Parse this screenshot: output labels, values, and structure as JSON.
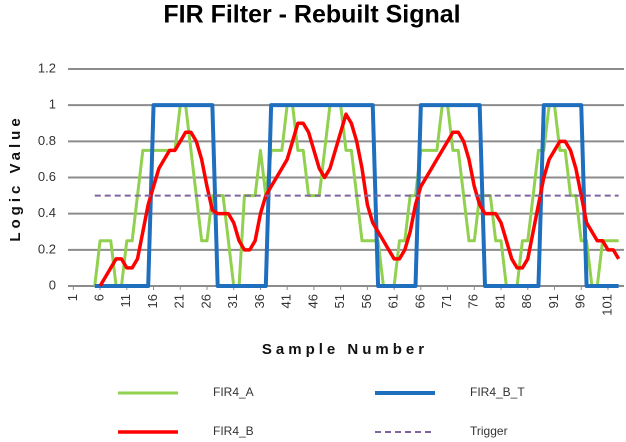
{
  "chart_data": {
    "type": "line",
    "title": "FIR Filter - Rebuilt Signal",
    "x_label": "Sample Number",
    "y_label": "Logic Value",
    "x": [
      5,
      6,
      7,
      8,
      9,
      10,
      11,
      12,
      13,
      14,
      15,
      16,
      17,
      18,
      19,
      20,
      21,
      22,
      23,
      24,
      25,
      26,
      27,
      28,
      29,
      30,
      31,
      32,
      33,
      34,
      35,
      36,
      37,
      38,
      39,
      40,
      41,
      42,
      43,
      44,
      45,
      46,
      47,
      48,
      49,
      50,
      51,
      52,
      53,
      54,
      55,
      56,
      57,
      58,
      59,
      60,
      61,
      62,
      63,
      64,
      65,
      66,
      67,
      68,
      69,
      70,
      71,
      72,
      73,
      74,
      75,
      76,
      77,
      78,
      79,
      80,
      81,
      82,
      83,
      84,
      85,
      86,
      87,
      88,
      89,
      90,
      91,
      92,
      93,
      94,
      95,
      96,
      97,
      98,
      99,
      100,
      101,
      102,
      103
    ],
    "series": [
      {
        "name": "FIR4_A",
        "color": "#92d050",
        "width": 3,
        "style": "solid",
        "values": [
          0,
          0.25,
          0.25,
          0.25,
          0,
          0,
          0.25,
          0.25,
          0.5,
          0.75,
          0.75,
          0.75,
          0.75,
          0.75,
          0.75,
          0.75,
          1,
          1,
          0.75,
          0.5,
          0.25,
          0.25,
          0.5,
          0.5,
          0.5,
          0.25,
          0,
          0,
          0.5,
          0.5,
          0.5,
          0.75,
          0.5,
          0.75,
          0.75,
          0.75,
          1,
          1,
          0.75,
          0.75,
          0.5,
          0.5,
          0.5,
          0.75,
          1,
          1,
          1,
          0.75,
          0.75,
          0.5,
          0.25,
          0.25,
          0.25,
          0.25,
          0,
          0,
          0,
          0.25,
          0.25,
          0.5,
          0.5,
          0.75,
          0.75,
          0.75,
          0.75,
          1,
          1,
          0.75,
          0.75,
          0.5,
          0.25,
          0.25,
          0.5,
          0.5,
          0.5,
          0.25,
          0.25,
          0,
          0,
          0,
          0.25,
          0.25,
          0.5,
          0.75,
          0.75,
          1,
          1,
          0.75,
          0.75,
          0.5,
          0.5,
          0.25,
          0.25,
          0,
          0,
          0.25,
          0.25,
          0.25,
          0.25
        ]
      },
      {
        "name": "FIR4_B_T",
        "color": "#1f6fbf",
        "width": 4,
        "style": "solid",
        "values": [
          0,
          0,
          0,
          0,
          0,
          0,
          0,
          0,
          0,
          0,
          0,
          1,
          1,
          1,
          1,
          1,
          1,
          1,
          1,
          1,
          1,
          1,
          1,
          0,
          0,
          0,
          0,
          0,
          0,
          0,
          0,
          0,
          0,
          1,
          1,
          1,
          1,
          1,
          1,
          1,
          1,
          1,
          1,
          1,
          1,
          1,
          1,
          1,
          1,
          1,
          1,
          1,
          1,
          0,
          0,
          0,
          0,
          0,
          0,
          0,
          0,
          1,
          1,
          1,
          1,
          1,
          1,
          1,
          1,
          1,
          1,
          1,
          1,
          0,
          0,
          0,
          0,
          0,
          0,
          0,
          0,
          0,
          0,
          0,
          1,
          1,
          1,
          1,
          1,
          1,
          1,
          1,
          0,
          0,
          0,
          0,
          0,
          0,
          0
        ]
      },
      {
        "name": "FIR4_B",
        "color": "#ff0000",
        "width": 3.5,
        "style": "solid",
        "values": [
          null,
          0,
          0.05,
          0.1,
          0.15,
          0.15,
          0.1,
          0.1,
          0.15,
          0.3,
          0.45,
          0.55,
          0.65,
          0.7,
          0.75,
          0.75,
          0.8,
          0.85,
          0.85,
          0.8,
          0.7,
          0.55,
          0.42,
          0.4,
          0.4,
          0.4,
          0.35,
          0.25,
          0.2,
          0.2,
          0.25,
          0.4,
          0.5,
          0.55,
          0.6,
          0.65,
          0.7,
          0.8,
          0.9,
          0.9,
          0.85,
          0.75,
          0.65,
          0.6,
          0.65,
          0.75,
          0.85,
          0.95,
          0.9,
          0.8,
          0.65,
          0.45,
          0.35,
          0.3,
          0.25,
          0.2,
          0.15,
          0.15,
          0.2,
          0.3,
          0.45,
          0.55,
          0.6,
          0.65,
          0.7,
          0.75,
          0.8,
          0.85,
          0.85,
          0.8,
          0.7,
          0.55,
          0.45,
          0.4,
          0.4,
          0.4,
          0.35,
          0.25,
          0.15,
          0.1,
          0.1,
          0.15,
          0.3,
          0.45,
          0.6,
          0.7,
          0.75,
          0.8,
          0.8,
          0.75,
          0.65,
          0.5,
          0.35,
          0.3,
          0.25,
          0.25,
          0.2,
          0.2,
          0.15
        ]
      },
      {
        "name": "Trigger",
        "color": "#8064a2",
        "width": 2,
        "style": "dashed",
        "values": [
          0.5,
          0.5,
          0.5,
          0.5,
          0.5,
          0.5,
          0.5,
          0.5,
          0.5,
          0.5,
          0.5,
          0.5,
          0.5,
          0.5,
          0.5,
          0.5,
          0.5,
          0.5,
          0.5,
          0.5,
          0.5,
          0.5,
          0.5,
          0.5,
          0.5,
          0.5,
          0.5,
          0.5,
          0.5,
          0.5,
          0.5,
          0.5,
          0.5,
          0.5,
          0.5,
          0.5,
          0.5,
          0.5,
          0.5,
          0.5,
          0.5,
          0.5,
          0.5,
          0.5,
          0.5,
          0.5,
          0.5,
          0.5,
          0.5,
          0.5,
          0.5,
          0.5,
          0.5,
          0.5,
          0.5,
          0.5,
          0.5,
          0.5,
          0.5,
          0.5,
          0.5,
          0.5,
          0.5,
          0.5,
          0.5,
          0.5,
          0.5,
          0.5,
          0.5,
          0.5,
          0.5,
          0.5,
          0.5,
          0.5,
          0.5,
          0.5,
          0.5,
          0.5,
          0.5,
          0.5,
          0.5,
          0.5,
          0.5,
          0.5,
          0.5,
          0.5,
          0.5,
          0.5,
          0.5,
          0.5,
          0.5,
          0.5,
          0.5,
          0.5,
          0.5,
          0.5,
          0.5,
          0.5,
          0.5
        ]
      }
    ],
    "draw_order": [
      0,
      1,
      2,
      3
    ],
    "xlim": [
      0,
      104
    ],
    "xticks": [
      1,
      6,
      11,
      16,
      21,
      26,
      31,
      36,
      41,
      46,
      51,
      56,
      61,
      66,
      71,
      76,
      81,
      86,
      91,
      96,
      101
    ],
    "ylim": [
      0,
      1.2
    ],
    "yticks": [
      0,
      0.2,
      0.4,
      0.6,
      0.8,
      1,
      1.2
    ],
    "grid": true,
    "legend": "bottom"
  }
}
